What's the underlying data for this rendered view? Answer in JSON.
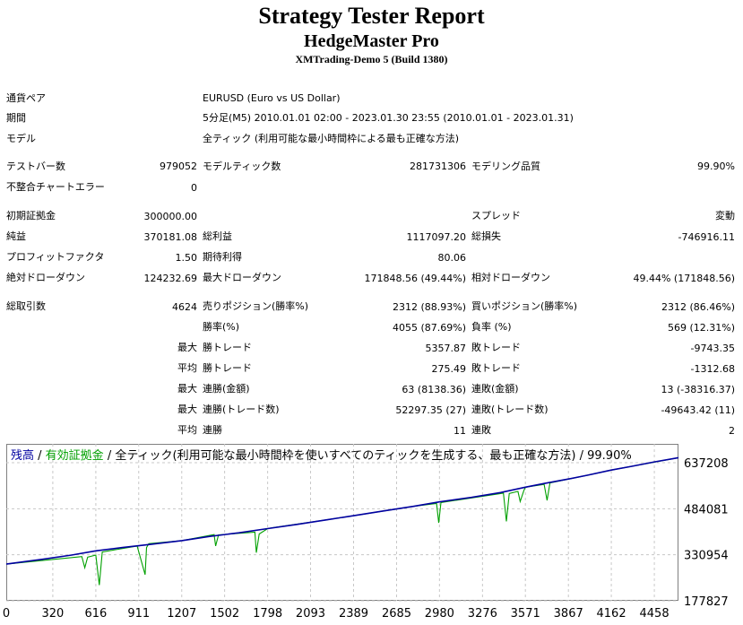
{
  "header": {
    "title": "Strategy Tester Report",
    "ea_name": "HedgeMaster Pro",
    "server": "XMTrading-Demo 5 (Build 1380)"
  },
  "info": {
    "symbol_label": "通貨ペア",
    "symbol_value": "EURUSD (Euro vs US Dollar)",
    "period_label": "期間",
    "period_value": "5分足(M5) 2010.01.01 02:00 - 2023.01.30 23:55 (2010.01.01 - 2023.01.31)",
    "model_label": "モデル",
    "model_value": "全ティック (利用可能な最小時間枠による最も正確な方法)"
  },
  "stats": {
    "bars_label": "テストバー数",
    "bars_value": "979052",
    "ticks_label": "モデルティック数",
    "ticks_value": "281731306",
    "quality_label": "モデリング品質",
    "quality_value": "99.90%",
    "errors_label": "不整合チャートエラー",
    "errors_value": "0",
    "deposit_label": "初期証拠金",
    "deposit_value": "300000.00",
    "spread_label": "スプレッド",
    "spread_value": "変動",
    "net_label": "純益",
    "net_value": "370181.08",
    "gross_profit_label": "総利益",
    "gross_profit_value": "1117097.20",
    "gross_loss_label": "総損失",
    "gross_loss_value": "-746916.11",
    "pf_label": "プロフィットファクタ",
    "pf_value": "1.50",
    "payoff_label": "期待利得",
    "payoff_value": "80.06",
    "abs_dd_label": "絶対ドローダウン",
    "abs_dd_value": "124232.69",
    "max_dd_label": "最大ドローダウン",
    "max_dd_value": "171848.56 (49.44%)",
    "rel_dd_label": "相対ドローダウン",
    "rel_dd_value": "49.44% (171848.56)",
    "trades_label": "総取引数",
    "trades_value": "4624",
    "short_label": "売りポジション(勝率%)",
    "short_value": "2312 (88.93%)",
    "long_label": "買いポジション(勝率%)",
    "long_value": "2312 (86.46%)",
    "win_pct_label": "勝率(%)",
    "win_pct_value": "4055 (87.69%)",
    "loss_pct_label": "負率 (%)",
    "loss_pct_value": "569 (12.31%)",
    "largest_prefix": "最大",
    "largest_win_label": "勝トレード",
    "largest_win_value": "5357.87",
    "largest_loss_label": "敗トレード",
    "largest_loss_value": "-9743.35",
    "average_prefix": "平均",
    "avg_win_label": "勝トレード",
    "avg_win_value": "275.49",
    "avg_loss_label": "敗トレード",
    "avg_loss_value": "-1312.68",
    "max_consec_prefix": "最大",
    "consec_wins_money_label": "連勝(金額)",
    "consec_wins_money_value": "63 (8138.36)",
    "consec_losses_money_label": "連敗(金額)",
    "consec_losses_money_value": "13 (-38316.37)",
    "max_consec2_prefix": "最大",
    "consec_profit_label": "連勝(トレード数)",
    "consec_profit_value": "52297.35 (27)",
    "consec_loss_label": "連敗(トレード数)",
    "consec_loss_value": "-49643.42 (11)",
    "avg_consec_prefix": "平均",
    "avg_consec_wins_label": "連勝",
    "avg_consec_wins_value": "11",
    "avg_consec_losses_label": "連敗",
    "avg_consec_losses_value": "2"
  },
  "chart_legend": {
    "balance": "残高",
    "sep1": " / ",
    "equity": "有効証拠金",
    "rest": " / 全ティック(利用可能な最小時間枠を使いすべてのティックを生成する、最も正確な方法) / 99.90%"
  },
  "colors": {
    "balance": "#0000A0",
    "equity": "#00A000",
    "grid": "#C8C8C8"
  },
  "chart_data": {
    "type": "line",
    "x_ticks": [
      0,
      320,
      616,
      911,
      1207,
      1502,
      1798,
      2093,
      2389,
      2685,
      2980,
      3276,
      3571,
      3867,
      4162,
      4458
    ],
    "y_ticks": [
      177827,
      330954,
      484081,
      637208
    ],
    "xlim": [
      0,
      4624
    ],
    "ylim": [
      177827,
      700000
    ],
    "grid": true,
    "series": [
      {
        "name": "残高",
        "x": [
          0,
          250,
          450,
          616,
          800,
          1000,
          1207,
          1400,
          1600,
          1798,
          2000,
          2200,
          2400,
          2600,
          2800,
          2980,
          3200,
          3400,
          3571,
          3700,
          3867,
          4000,
          4162,
          4300,
          4458,
          4624
        ],
        "y": [
          300000,
          316000,
          330000,
          344000,
          355000,
          366000,
          378000,
          392000,
          404000,
          418000,
          432000,
          447000,
          462000,
          477000,
          492000,
          507000,
          522000,
          538000,
          556000,
          568000,
          583000,
          596000,
          613000,
          625000,
          640000,
          654000
        ]
      },
      {
        "name": "有効証拠金",
        "x": [
          0,
          520,
          540,
          560,
          616,
          640,
          660,
          900,
          955,
          965,
          980,
          1207,
          1430,
          1440,
          1460,
          1710,
          1720,
          1740,
          1798,
          1830,
          2200,
          2800,
          2960,
          2975,
          2990,
          3420,
          3440,
          3460,
          3520,
          3535,
          3560,
          3571,
          3700,
          3720,
          3740,
          4000,
          4162,
          4624
        ],
        "y": [
          300000,
          325000,
          288000,
          323000,
          330000,
          230000,
          340000,
          360000,
          265000,
          355000,
          368000,
          378000,
          398000,
          360000,
          397000,
          406000,
          338000,
          400000,
          418000,
          421000,
          447000,
          492000,
          502000,
          437000,
          505000,
          536000,
          442000,
          535000,
          542000,
          508000,
          544000,
          556000,
          565000,
          512000,
          570000,
          596000,
          613000,
          654000
        ]
      }
    ]
  }
}
